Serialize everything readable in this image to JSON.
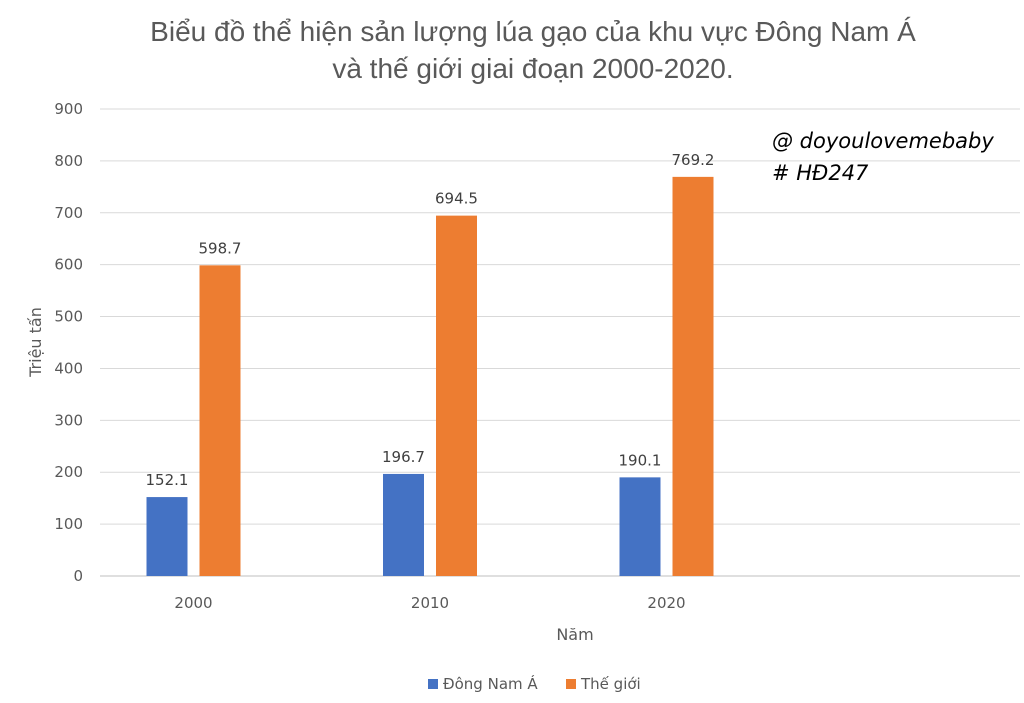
{
  "title_line1": "Biểu đồ thể hiện sản lượng lúa gạo của khu vực Đông Nam Á",
  "title_line2": "và thế giới giai đoạn 2000-2020.",
  "watermark_line1": "@ doyoulovemebaby",
  "watermark_line2": "# HĐ247",
  "chart_data": {
    "type": "bar",
    "title": "Biểu đồ thể hiện sản lượng lúa gạo của khu vực Đông Nam Á và thế giới giai đoạn 2000-2020.",
    "xlabel": "Năm",
    "ylabel": "Triệu tấn",
    "categories": [
      "2000",
      "2010",
      "2020"
    ],
    "series": [
      {
        "name": "Đông Nam Á",
        "values": [
          152.1,
          196.7,
          190.1
        ],
        "color": "#4472c4"
      },
      {
        "name": "Thế giới",
        "values": [
          598.7,
          694.5,
          769.2
        ],
        "color": "#ed7d31"
      }
    ],
    "ylim": [
      0,
      900
    ],
    "yticks": [
      0,
      100,
      200,
      300,
      400,
      500,
      600,
      700,
      800,
      900
    ],
    "grid": true,
    "legend": "bottom",
    "data_labels": [
      "152.1",
      "196.7",
      "190.1",
      "598.7",
      "694.5",
      "769.2"
    ]
  }
}
